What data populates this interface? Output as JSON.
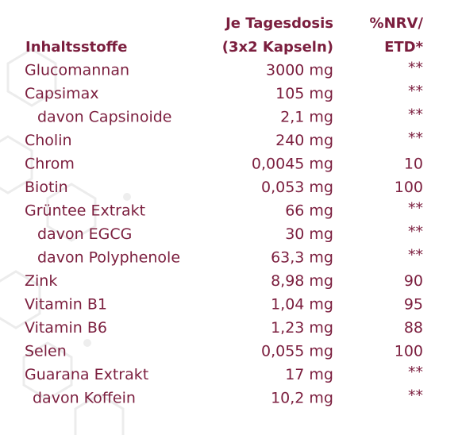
{
  "header": {
    "amount_title": "Je Tagesdosis",
    "amount_subtitle": "(3x2 Kapseln)",
    "ingredient_title": "Inhaltsstoffe",
    "nrv_title": "%NRV/",
    "nrv_subtitle": "ETD*"
  },
  "table": {
    "rows": [
      [
        "Glucomannan",
        "3000 mg",
        "**"
      ],
      [
        "Capsimax",
        "105 mg",
        "**"
      ],
      [
        "davon Capsinoide",
        "2,1 mg",
        "**"
      ],
      [
        "Cholin",
        "240 mg",
        "**"
      ],
      [
        "Chrom",
        "0,0045 mg",
        "10"
      ],
      [
        "Biotin",
        "0,053 mg",
        "100"
      ],
      [
        "Grüntee Extrakt",
        "66 mg",
        "**"
      ],
      [
        "davon EGCG",
        "30 mg",
        "**"
      ],
      [
        "davon Polyphenole",
        "63,3 mg",
        "**"
      ],
      [
        "Zink",
        "8,98 mg",
        "90"
      ],
      [
        "Vitamin B1",
        "1,04 mg",
        "95"
      ],
      [
        "Vitamin B6",
        "1,23 mg",
        "88"
      ],
      [
        "Selen",
        "0,055 mg",
        "100"
      ],
      [
        "Guarana Extrakt",
        "17 mg",
        "**"
      ],
      [
        "davon Koffein",
        "10,2 mg",
        "**"
      ]
    ]
  }
}
